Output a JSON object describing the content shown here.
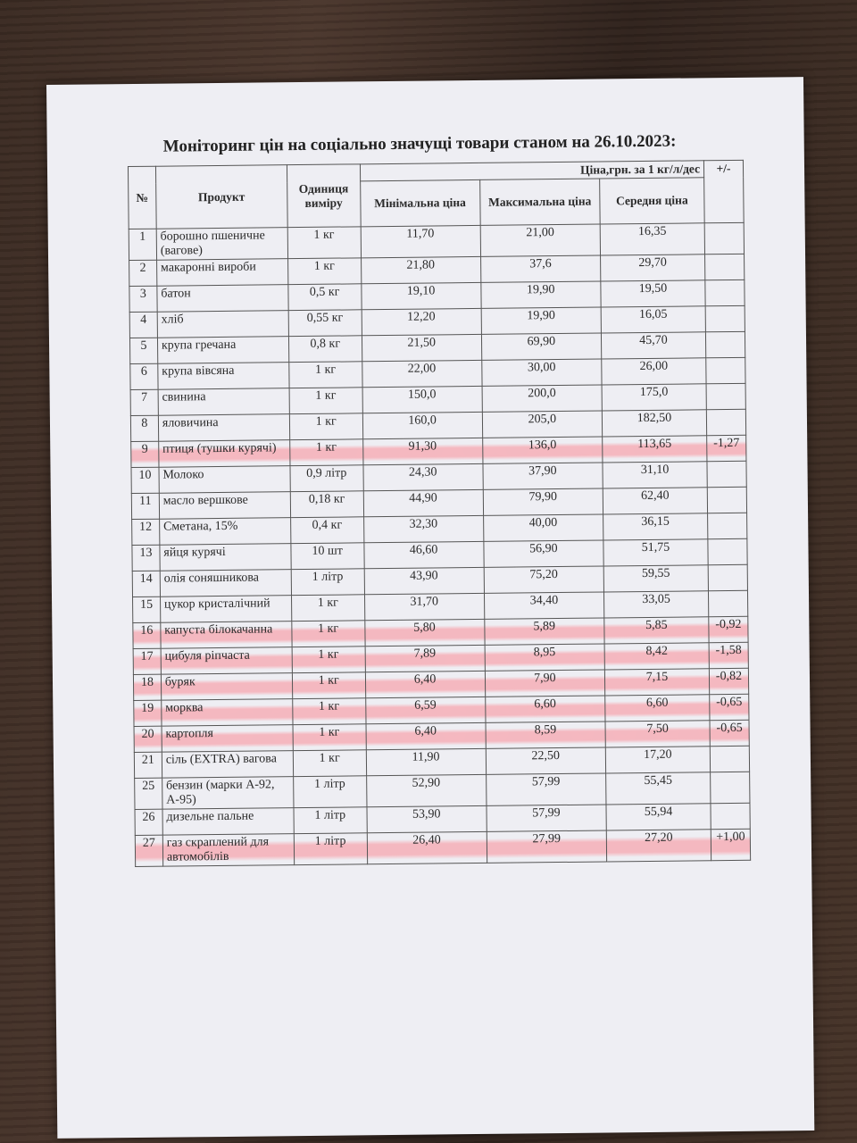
{
  "title": "Моніторинг цін на соціально значущі товари станом на 26.10.2023:",
  "header": {
    "no": "№",
    "product": "Продукт",
    "unit": "Одиниця виміру",
    "price_group": "Ціна,грн. за 1 кг/л/дес",
    "min": "Мінімальна ціна",
    "max": "Максимальна ціна",
    "avg": "Середня ціна",
    "change": "+/-"
  },
  "highlight_color": "#f59aa3",
  "rows": [
    {
      "no": "1",
      "product": "борошно пшеничне (вагове)",
      "unit": "1 кг",
      "min": "11,70",
      "max": "21,00",
      "avg": "16,35",
      "change": "",
      "highlighted": false
    },
    {
      "no": "2",
      "product": "макаронні вироби",
      "unit": "1 кг",
      "min": "21,80",
      "max": "37,6",
      "avg": "29,70",
      "change": "",
      "highlighted": false
    },
    {
      "no": "3",
      "product": "батон",
      "unit": "0,5 кг",
      "min": "19,10",
      "max": "19,90",
      "avg": "19,50",
      "change": "",
      "highlighted": false
    },
    {
      "no": "4",
      "product": "хліб",
      "unit": "0,55 кг",
      "min": "12,20",
      "max": "19,90",
      "avg": "16,05",
      "change": "",
      "highlighted": false
    },
    {
      "no": "5",
      "product": "крупа гречана",
      "unit": "0,8 кг",
      "min": "21,50",
      "max": "69,90",
      "avg": "45,70",
      "change": "",
      "highlighted": false
    },
    {
      "no": "6",
      "product": "крупа вівсяна",
      "unit": "1 кг",
      "min": "22,00",
      "max": "30,00",
      "avg": "26,00",
      "change": "",
      "highlighted": false
    },
    {
      "no": "7",
      "product": "свинина",
      "unit": "1 кг",
      "min": "150,0",
      "max": "200,0",
      "avg": "175,0",
      "change": "",
      "highlighted": false
    },
    {
      "no": "8",
      "product": "яловичина",
      "unit": "1 кг",
      "min": "160,0",
      "max": "205,0",
      "avg": "182,50",
      "change": "",
      "highlighted": false
    },
    {
      "no": "9",
      "product": "птиця (тушки курячі)",
      "unit": "1 кг",
      "min": "91,30",
      "max": "136,0",
      "avg": "113,65",
      "change": "-1,27",
      "highlighted": true
    },
    {
      "no": "10",
      "product": "Молоко",
      "unit": "0,9 літр",
      "min": "24,30",
      "max": "37,90",
      "avg": "31,10",
      "change": "",
      "highlighted": false
    },
    {
      "no": "11",
      "product": "масло вершкове",
      "unit": "0,18 кг",
      "min": "44,90",
      "max": "79,90",
      "avg": "62,40",
      "change": "",
      "highlighted": false
    },
    {
      "no": "12",
      "product": "Сметана, 15%",
      "unit": "0,4 кг",
      "min": "32,30",
      "max": "40,00",
      "avg": "36,15",
      "change": "",
      "highlighted": false
    },
    {
      "no": "13",
      "product": "яйця курячі",
      "unit": "10 шт",
      "min": "46,60",
      "max": "56,90",
      "avg": "51,75",
      "change": "",
      "highlighted": false
    },
    {
      "no": "14",
      "product": "олія соняшникова",
      "unit": "1 літр",
      "min": "43,90",
      "max": "75,20",
      "avg": "59,55",
      "change": "",
      "highlighted": false
    },
    {
      "no": "15",
      "product": "цукор кристалічний",
      "unit": "1 кг",
      "min": "31,70",
      "max": "34,40",
      "avg": "33,05",
      "change": "",
      "highlighted": false
    },
    {
      "no": "16",
      "product": "капуста білокачанна",
      "unit": "1 кг",
      "min": "5,80",
      "max": "5,89",
      "avg": "5,85",
      "change": "-0,92",
      "highlighted": true
    },
    {
      "no": "17",
      "product": "цибуля ріпчаста",
      "unit": "1 кг",
      "min": "7,89",
      "max": "8,95",
      "avg": "8,42",
      "change": "-1,58",
      "highlighted": true
    },
    {
      "no": "18",
      "product": "буряк",
      "unit": "1 кг",
      "min": "6,40",
      "max": "7,90",
      "avg": "7,15",
      "change": "-0,82",
      "highlighted": true
    },
    {
      "no": "19",
      "product": "морква",
      "unit": "1 кг",
      "min": "6,59",
      "max": "6,60",
      "avg": "6,60",
      "change": "-0,65",
      "highlighted": true
    },
    {
      "no": "20",
      "product": "картопля",
      "unit": "1 кг",
      "min": "6,40",
      "max": "8,59",
      "avg": "7,50",
      "change": "-0,65",
      "highlighted": true
    },
    {
      "no": "21",
      "product": "сіль (EXTRA) вагова",
      "unit": "1 кг",
      "min": "11,90",
      "max": "22,50",
      "avg": "17,20",
      "change": "",
      "highlighted": false
    },
    {
      "no": "25",
      "product": "бензин (марки А-92, А-95)",
      "unit": "1 літр",
      "min": "52,90",
      "max": "57,99",
      "avg": "55,45",
      "change": "",
      "highlighted": false
    },
    {
      "no": "26",
      "product": "дизельне пальне",
      "unit": "1 літр",
      "min": "53,90",
      "max": "57,99",
      "avg": "55,94",
      "change": "",
      "highlighted": false
    },
    {
      "no": "27",
      "product": "газ скраплений для автомобілів",
      "unit": "1 літр",
      "min": "26,40",
      "max": "27,99",
      "avg": "27,20",
      "change": "+1,00",
      "highlighted": true
    }
  ]
}
